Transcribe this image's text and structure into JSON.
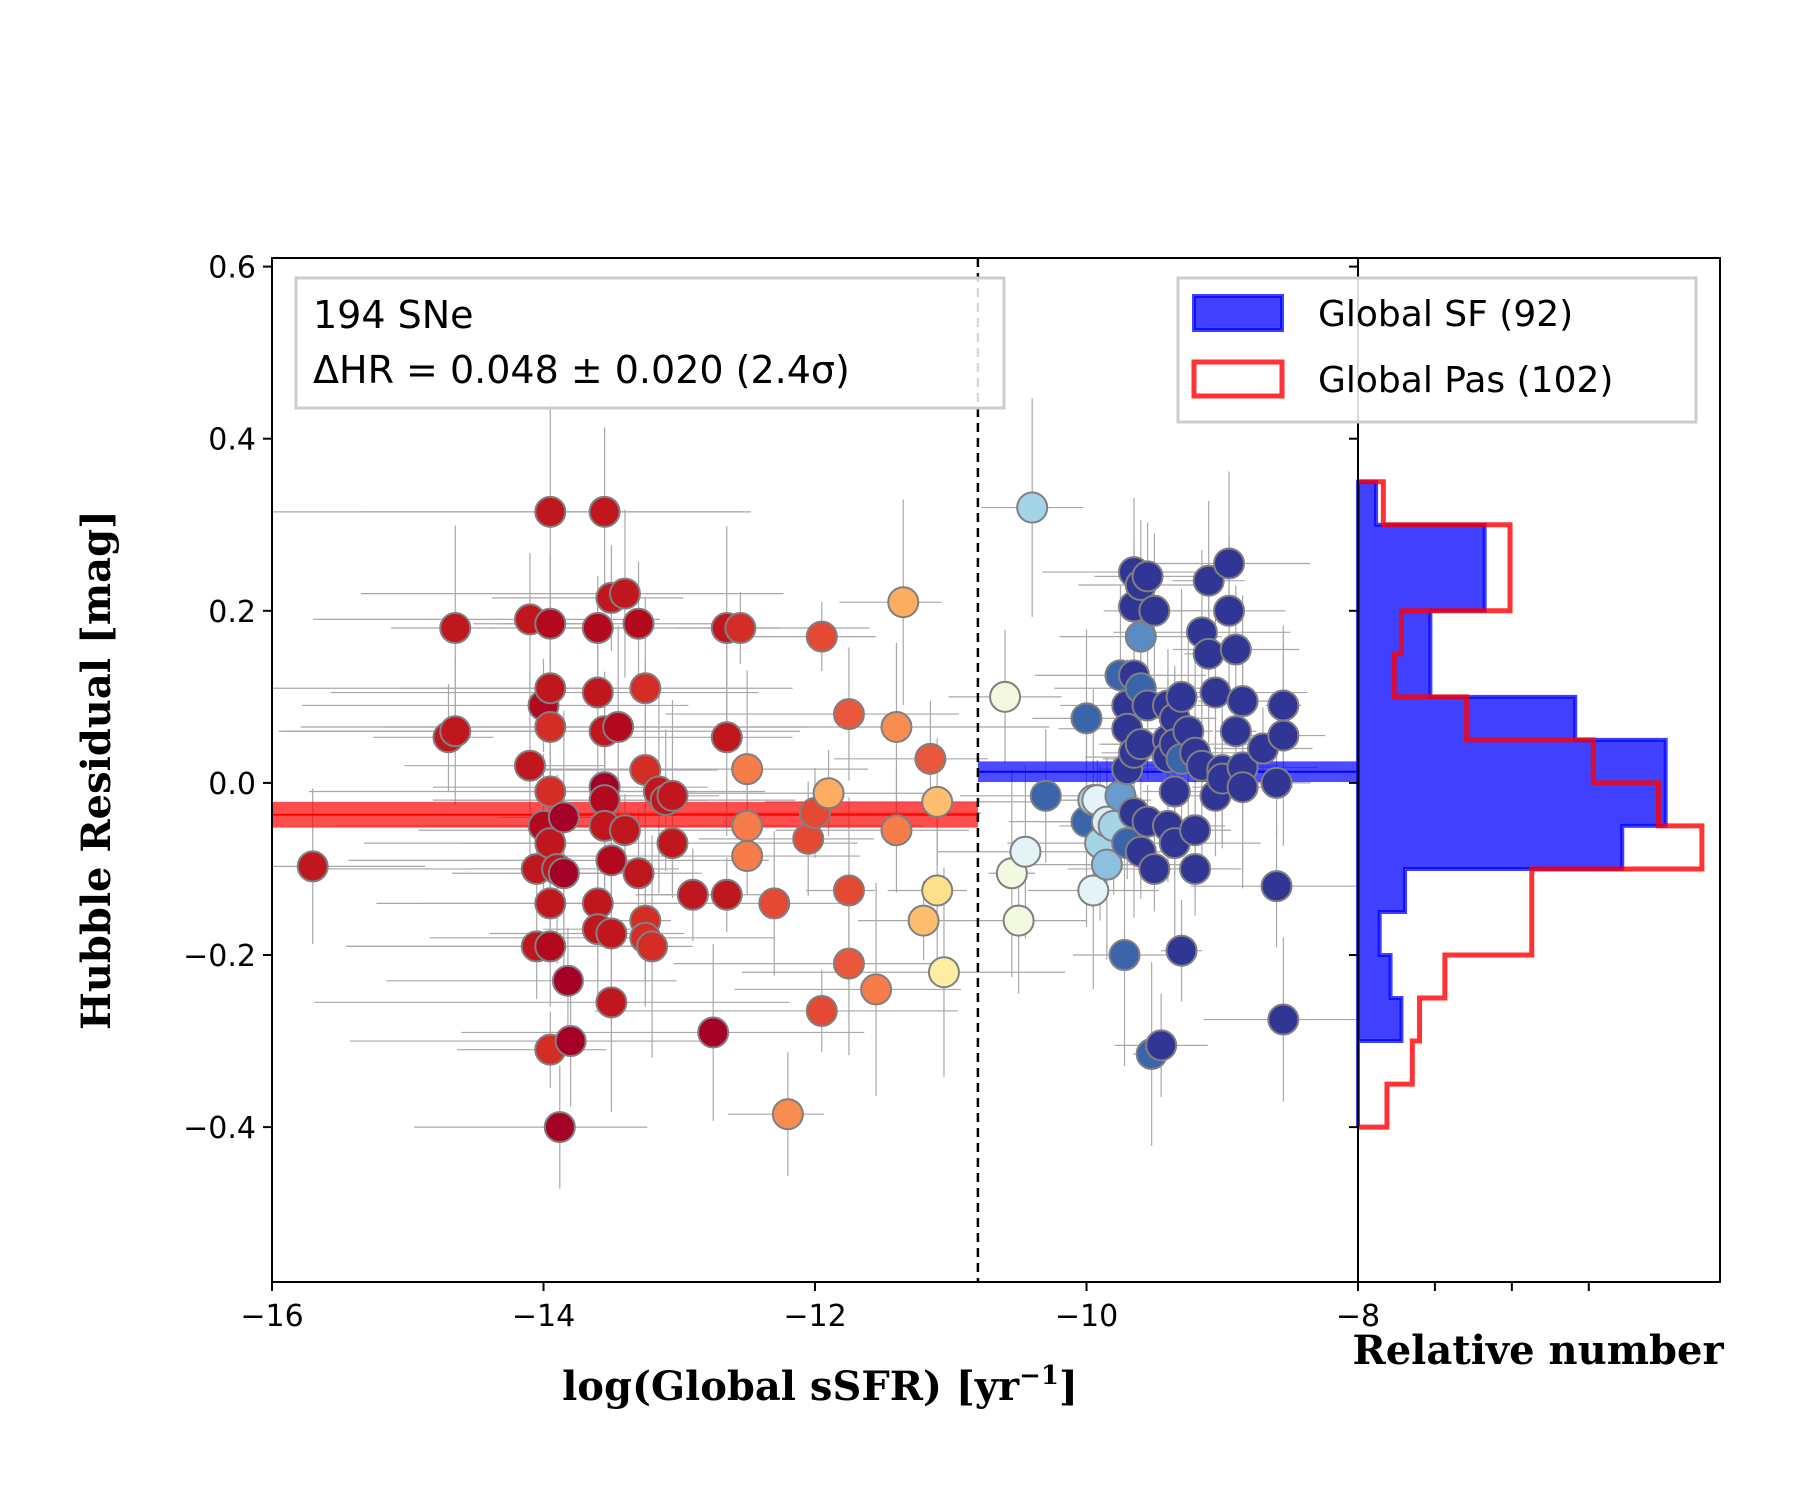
{
  "chart_data": {
    "type": "scatter",
    "xlabel": "log(Global sSFR) [yr",
    "xlabel_sup": "−1",
    "xlabel_tail": "]",
    "ylabel": "Hubble Residual [mag]",
    "hist_xlabel": "Relative number",
    "xlim": [
      -16,
      -8
    ],
    "ylim": [
      -0.58,
      0.61
    ],
    "xticks": [
      {
        "v": -16,
        "label": "−16"
      },
      {
        "v": -14,
        "label": "−14"
      },
      {
        "v": -12,
        "label": "−12"
      },
      {
        "v": -10,
        "label": "−10"
      },
      {
        "v": -8,
        "label": "−8"
      }
    ],
    "yticks": [
      {
        "v": 0.6,
        "label": "0.6"
      },
      {
        "v": 0.4,
        "label": "0.4"
      },
      {
        "v": 0.2,
        "label": "0.2"
      },
      {
        "v": 0.0,
        "label": "0.0"
      },
      {
        "v": -0.2,
        "label": "−0.2"
      },
      {
        "v": -0.4,
        "label": "−0.4"
      }
    ],
    "divider_x": -10.8,
    "annotation": {
      "line1": "194 SNe",
      "line2": "ΔHR = 0.048 ± 0.020 (2.4σ)"
    },
    "legend": [
      {
        "label": "Global SF (92)",
        "color": "#0000ff",
        "style": "filled"
      },
      {
        "label": "Global Pas (102)",
        "color": "#ff0000",
        "style": "outline"
      }
    ],
    "mean_bands": [
      {
        "group": "SF",
        "color": "#0000ff",
        "x_range": [
          -10.8,
          -8
        ],
        "mean": 0.013,
        "err": 0.012
      },
      {
        "group": "Pas",
        "color": "#ff0000",
        "x_range": [
          -16,
          -10.8
        ],
        "mean": -0.037,
        "err": 0.015
      }
    ],
    "series": [
      {
        "name": "Global Pas (102)",
        "points": [
          {
            "x": -15.7,
            "y": -0.097,
            "c": "#c0171f"
          },
          {
            "x": -14.7,
            "y": 0.053,
            "c": "#c0171f"
          },
          {
            "x": -14.65,
            "y": 0.06,
            "c": "#c0171f"
          },
          {
            "x": -14.65,
            "y": 0.18,
            "c": "#c0171f"
          },
          {
            "x": -14.1,
            "y": 0.19,
            "c": "#c0171f"
          },
          {
            "x": -14.1,
            "y": 0.02,
            "c": "#c0171f"
          },
          {
            "x": -14.05,
            "y": -0.1,
            "c": "#c0171f"
          },
          {
            "x": -14.05,
            "y": -0.19,
            "c": "#c0171f"
          },
          {
            "x": -14.0,
            "y": 0.09,
            "c": "#b2091f"
          },
          {
            "x": -14.0,
            "y": -0.05,
            "c": "#b2091f"
          },
          {
            "x": -13.95,
            "y": -0.31,
            "c": "#d42d25"
          },
          {
            "x": -13.95,
            "y": 0.315,
            "c": "#c0171f"
          },
          {
            "x": -13.95,
            "y": 0.185,
            "c": "#b2091f"
          },
          {
            "x": -13.95,
            "y": 0.11,
            "c": "#c0171f"
          },
          {
            "x": -13.95,
            "y": 0.065,
            "c": "#d42d25"
          },
          {
            "x": -13.95,
            "y": -0.01,
            "c": "#d42d25"
          },
          {
            "x": -13.95,
            "y": -0.07,
            "c": "#c0171f"
          },
          {
            "x": -13.95,
            "y": -0.14,
            "c": "#c0171f"
          },
          {
            "x": -13.95,
            "y": -0.19,
            "c": "#b2091f"
          },
          {
            "x": -13.9,
            "y": -0.1,
            "c": "#c0171f"
          },
          {
            "x": -13.88,
            "y": -0.4,
            "c": "#a50026"
          },
          {
            "x": -13.85,
            "y": -0.04,
            "c": "#a50026"
          },
          {
            "x": -13.85,
            "y": -0.105,
            "c": "#a50026"
          },
          {
            "x": -13.82,
            "y": -0.23,
            "c": "#a50026"
          },
          {
            "x": -13.8,
            "y": -0.3,
            "c": "#a50026"
          },
          {
            "x": -13.6,
            "y": 0.105,
            "c": "#c0171f"
          },
          {
            "x": -13.6,
            "y": 0.18,
            "c": "#b2091f"
          },
          {
            "x": -13.6,
            "y": -0.14,
            "c": "#c0171f"
          },
          {
            "x": -13.6,
            "y": -0.17,
            "c": "#c0171f"
          },
          {
            "x": -13.55,
            "y": 0.315,
            "c": "#c0171f"
          },
          {
            "x": -13.55,
            "y": 0.06,
            "c": "#c0171f"
          },
          {
            "x": -13.55,
            "y": -0.005,
            "c": "#a50026"
          },
          {
            "x": -13.55,
            "y": -0.02,
            "c": "#b2091f"
          },
          {
            "x": -13.55,
            "y": -0.05,
            "c": "#c0171f"
          },
          {
            "x": -13.5,
            "y": 0.215,
            "c": "#c0171f"
          },
          {
            "x": -13.5,
            "y": -0.09,
            "c": "#b2091f"
          },
          {
            "x": -13.5,
            "y": -0.175,
            "c": "#c0171f"
          },
          {
            "x": -13.5,
            "y": -0.255,
            "c": "#c0171f"
          },
          {
            "x": -13.45,
            "y": 0.065,
            "c": "#b2091f"
          },
          {
            "x": -13.4,
            "y": 0.22,
            "c": "#c0171f"
          },
          {
            "x": -13.4,
            "y": -0.055,
            "c": "#c0171f"
          },
          {
            "x": -13.3,
            "y": 0.185,
            "c": "#b2091f"
          },
          {
            "x": -13.3,
            "y": -0.105,
            "c": "#c0171f"
          },
          {
            "x": -13.25,
            "y": 0.11,
            "c": "#d42d25"
          },
          {
            "x": -13.25,
            "y": 0.015,
            "c": "#d42d25"
          },
          {
            "x": -13.25,
            "y": -0.16,
            "c": "#d42d25"
          },
          {
            "x": -13.25,
            "y": -0.18,
            "c": "#d42d25"
          },
          {
            "x": -13.2,
            "y": -0.19,
            "c": "#d42d25"
          },
          {
            "x": -13.15,
            "y": -0.01,
            "c": "#c0171f"
          },
          {
            "x": -13.1,
            "y": -0.02,
            "c": "#c0171f"
          },
          {
            "x": -13.05,
            "y": -0.015,
            "c": "#c0171f"
          },
          {
            "x": -13.05,
            "y": -0.07,
            "c": "#c0171f"
          },
          {
            "x": -12.9,
            "y": -0.13,
            "c": "#c0171f"
          },
          {
            "x": -12.75,
            "y": -0.29,
            "c": "#a50026"
          },
          {
            "x": -12.65,
            "y": 0.18,
            "c": "#c0171f"
          },
          {
            "x": -12.65,
            "y": 0.053,
            "c": "#c0171f"
          },
          {
            "x": -12.65,
            "y": -0.13,
            "c": "#c0171f"
          },
          {
            "x": -12.55,
            "y": 0.18,
            "c": "#d42d25"
          },
          {
            "x": -12.5,
            "y": 0.016,
            "c": "#f67c4a"
          },
          {
            "x": -12.5,
            "y": -0.05,
            "c": "#f67c4a"
          },
          {
            "x": -12.5,
            "y": -0.085,
            "c": "#f67c4a"
          },
          {
            "x": -12.3,
            "y": -0.14,
            "c": "#e34933"
          },
          {
            "x": -12.2,
            "y": -0.385,
            "c": "#f88c51"
          },
          {
            "x": -12.05,
            "y": -0.065,
            "c": "#e34933"
          },
          {
            "x": -12.0,
            "y": -0.035,
            "c": "#e34933"
          },
          {
            "x": -11.95,
            "y": 0.17,
            "c": "#e34933"
          },
          {
            "x": -11.95,
            "y": -0.265,
            "c": "#e34933"
          },
          {
            "x": -11.9,
            "y": -0.012,
            "c": "#fdad60"
          },
          {
            "x": -11.75,
            "y": 0.08,
            "c": "#e9583c"
          },
          {
            "x": -11.75,
            "y": -0.125,
            "c": "#e34933"
          },
          {
            "x": -11.75,
            "y": -0.21,
            "c": "#e9583c"
          },
          {
            "x": -11.55,
            "y": -0.24,
            "c": "#f67c4a"
          },
          {
            "x": -11.4,
            "y": 0.065,
            "c": "#f88c51"
          },
          {
            "x": -11.4,
            "y": -0.055,
            "c": "#f67c4a"
          },
          {
            "x": -11.35,
            "y": 0.21,
            "c": "#fdad60"
          },
          {
            "x": -11.2,
            "y": -0.16,
            "c": "#fdbf6f"
          },
          {
            "x": -11.15,
            "y": 0.028,
            "c": "#e9583c"
          },
          {
            "x": -11.1,
            "y": -0.125,
            "c": "#fee08b"
          },
          {
            "x": -11.1,
            "y": -0.022,
            "c": "#fdbf6f"
          },
          {
            "x": -11.05,
            "y": -0.22,
            "c": "#feeea1"
          }
        ]
      },
      {
        "name": "Global SF (92)",
        "points": [
          {
            "x": -10.6,
            "y": 0.1,
            "c": "#f3f9df"
          },
          {
            "x": -10.55,
            "y": -0.105,
            "c": "#f3f9df"
          },
          {
            "x": -10.5,
            "y": -0.16,
            "c": "#f3f9df"
          },
          {
            "x": -10.45,
            "y": -0.08,
            "c": "#e3f3f7"
          },
          {
            "x": -10.4,
            "y": 0.32,
            "c": "#a6d4e7"
          },
          {
            "x": -10.3,
            "y": -0.015,
            "c": "#3a65ab"
          },
          {
            "x": -10.0,
            "y": 0.075,
            "c": "#3a65ab"
          },
          {
            "x": -10.0,
            "y": -0.045,
            "c": "#3a65ab"
          },
          {
            "x": -9.95,
            "y": -0.02,
            "c": "#a6d4e7"
          },
          {
            "x": -9.95,
            "y": -0.125,
            "c": "#e3f3f7"
          },
          {
            "x": -9.92,
            "y": -0.02,
            "c": "#e3f3f7"
          },
          {
            "x": -9.9,
            "y": -0.07,
            "c": "#a6d4e7"
          },
          {
            "x": -9.85,
            "y": -0.045,
            "c": "#d7ecf3"
          },
          {
            "x": -9.85,
            "y": -0.095,
            "c": "#8cc0de"
          },
          {
            "x": -9.8,
            "y": -0.05,
            "c": "#a6d4e7"
          },
          {
            "x": -9.75,
            "y": 0.125,
            "c": "#3a65ab"
          },
          {
            "x": -9.75,
            "y": -0.015,
            "c": "#6a9ccb"
          },
          {
            "x": -9.72,
            "y": -0.2,
            "c": "#3a65ab"
          },
          {
            "x": -9.7,
            "y": 0.09,
            "c": "#313695"
          },
          {
            "x": -9.7,
            "y": 0.063,
            "c": "#313695"
          },
          {
            "x": -9.7,
            "y": 0.016,
            "c": "#313695"
          },
          {
            "x": -9.7,
            "y": -0.07,
            "c": "#3a65ab"
          },
          {
            "x": -9.65,
            "y": 0.245,
            "c": "#313695"
          },
          {
            "x": -9.65,
            "y": 0.205,
            "c": "#313695"
          },
          {
            "x": -9.65,
            "y": 0.125,
            "c": "#313695"
          },
          {
            "x": -9.65,
            "y": 0.035,
            "c": "#313695"
          },
          {
            "x": -9.65,
            "y": -0.035,
            "c": "#313695"
          },
          {
            "x": -9.6,
            "y": 0.23,
            "c": "#313695"
          },
          {
            "x": -9.6,
            "y": 0.17,
            "c": "#5a8bc2"
          },
          {
            "x": -9.6,
            "y": 0.045,
            "c": "#313695"
          },
          {
            "x": -9.6,
            "y": 0.11,
            "c": "#3a65ab"
          },
          {
            "x": -9.6,
            "y": -0.08,
            "c": "#313695"
          },
          {
            "x": -9.55,
            "y": 0.24,
            "c": "#313695"
          },
          {
            "x": -9.55,
            "y": 0.09,
            "c": "#313695"
          },
          {
            "x": -9.55,
            "y": -0.045,
            "c": "#313695"
          },
          {
            "x": -9.52,
            "y": -0.315,
            "c": "#3a65ab"
          },
          {
            "x": -9.5,
            "y": 0.2,
            "c": "#313695"
          },
          {
            "x": -9.5,
            "y": -0.1,
            "c": "#313695"
          },
          {
            "x": -9.45,
            "y": -0.305,
            "c": "#313695"
          },
          {
            "x": -9.4,
            "y": 0.09,
            "c": "#313695"
          },
          {
            "x": -9.4,
            "y": 0.05,
            "c": "#313695"
          },
          {
            "x": -9.4,
            "y": 0.03,
            "c": "#313695"
          },
          {
            "x": -9.4,
            "y": -0.05,
            "c": "#313695"
          },
          {
            "x": -9.35,
            "y": 0.075,
            "c": "#313695"
          },
          {
            "x": -9.35,
            "y": 0.045,
            "c": "#313695"
          },
          {
            "x": -9.35,
            "y": -0.01,
            "c": "#313695"
          },
          {
            "x": -9.35,
            "y": -0.07,
            "c": "#313695"
          },
          {
            "x": -9.3,
            "y": 0.1,
            "c": "#313695"
          },
          {
            "x": -9.3,
            "y": 0.028,
            "c": "#3a65ab"
          },
          {
            "x": -9.3,
            "y": -0.195,
            "c": "#313695"
          },
          {
            "x": -9.25,
            "y": 0.06,
            "c": "#313695"
          },
          {
            "x": -9.2,
            "y": 0.035,
            "c": "#313695"
          },
          {
            "x": -9.2,
            "y": -0.055,
            "c": "#313695"
          },
          {
            "x": -9.2,
            "y": -0.1,
            "c": "#313695"
          },
          {
            "x": -9.15,
            "y": 0.175,
            "c": "#313695"
          },
          {
            "x": -9.15,
            "y": 0.02,
            "c": "#313695"
          },
          {
            "x": -9.1,
            "y": 0.235,
            "c": "#313695"
          },
          {
            "x": -9.1,
            "y": 0.15,
            "c": "#313695"
          },
          {
            "x": -9.05,
            "y": 0.105,
            "c": "#313695"
          },
          {
            "x": -9.05,
            "y": -0.015,
            "c": "#313695"
          },
          {
            "x": -9.0,
            "y": 0.015,
            "c": "#313695"
          },
          {
            "x": -9.0,
            "y": 0.005,
            "c": "#313695"
          },
          {
            "x": -8.95,
            "y": 0.255,
            "c": "#313695"
          },
          {
            "x": -8.95,
            "y": 0.2,
            "c": "#313695"
          },
          {
            "x": -8.9,
            "y": 0.155,
            "c": "#313695"
          },
          {
            "x": -8.9,
            "y": 0.06,
            "c": "#313695"
          },
          {
            "x": -8.85,
            "y": 0.095,
            "c": "#313695"
          },
          {
            "x": -8.85,
            "y": 0.018,
            "c": "#313695"
          },
          {
            "x": -8.85,
            "y": -0.005,
            "c": "#313695"
          },
          {
            "x": -8.7,
            "y": 0.04,
            "c": "#313695"
          },
          {
            "x": -8.6,
            "y": -0.12,
            "c": "#313695"
          },
          {
            "x": -8.6,
            "y": -0.0,
            "c": "#313695"
          },
          {
            "x": -8.55,
            "y": 0.09,
            "c": "#313695"
          },
          {
            "x": -8.55,
            "y": 0.055,
            "c": "#313695"
          },
          {
            "x": -8.55,
            "y": -0.275,
            "c": "#313695"
          }
        ]
      }
    ],
    "hist": {
      "x_max": 1.0,
      "bin_edges": [
        -0.4,
        -0.35,
        -0.3,
        -0.25,
        -0.2,
        -0.15,
        -0.1,
        -0.05,
        0.0,
        0.05,
        0.1,
        0.15,
        0.2,
        0.25,
        0.3,
        0.35
      ],
      "SF": [
        0.0,
        0.0,
        0.12,
        0.09,
        0.06,
        0.13,
        0.73,
        0.85,
        0.85,
        0.6,
        0.2,
        0.2,
        0.35,
        0.35,
        0.05
      ],
      "Pas": [
        0.08,
        0.15,
        0.17,
        0.24,
        0.48,
        0.48,
        0.95,
        0.83,
        0.65,
        0.3,
        0.1,
        0.12,
        0.42,
        0.42,
        0.07
      ]
    }
  }
}
